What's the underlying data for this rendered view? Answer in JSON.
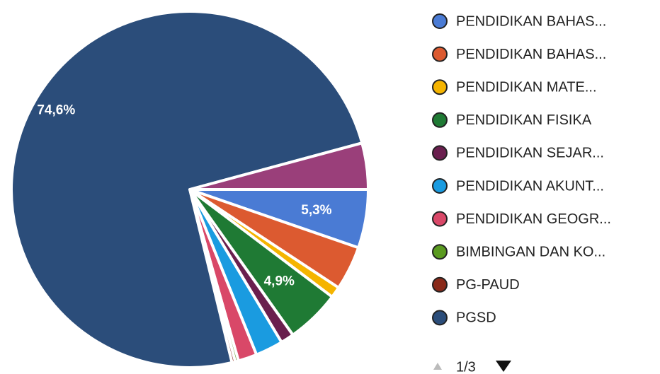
{
  "chart_data": {
    "type": "pie",
    "categories": [
      "PENDIDIKAN BAHAS...",
      "PENDIDIKAN BAHAS...",
      "PENDIDIKAN MATE...",
      "PENDIDIKAN FISIKA",
      "PENDIDIKAN SEJAR...",
      "PENDIDIKAN AKUNT...",
      "PENDIDIKAN GEOGR...",
      "BIMBINGAN DAN KO...",
      "PG-PAUD",
      "PGSD",
      null
    ],
    "values": [
      5.3,
      4.0,
      1.0,
      4.9,
      1.2,
      2.5,
      1.7,
      0.3,
      0.3,
      74.6,
      4.2
    ],
    "value_labels": [
      "5,3%",
      null,
      null,
      "4,9%",
      null,
      null,
      null,
      null,
      null,
      "74,6%",
      null
    ],
    "colors": [
      "#4a7bd4",
      "#dc5a30",
      "#f5b400",
      "#1f7a34",
      "#6a1f4e",
      "#1a9be0",
      "#d94868",
      "#5a9a20",
      "#8a2a1a",
      "#2b4d7a",
      "#9a3f7a"
    ],
    "page_indicator": "1/3"
  }
}
